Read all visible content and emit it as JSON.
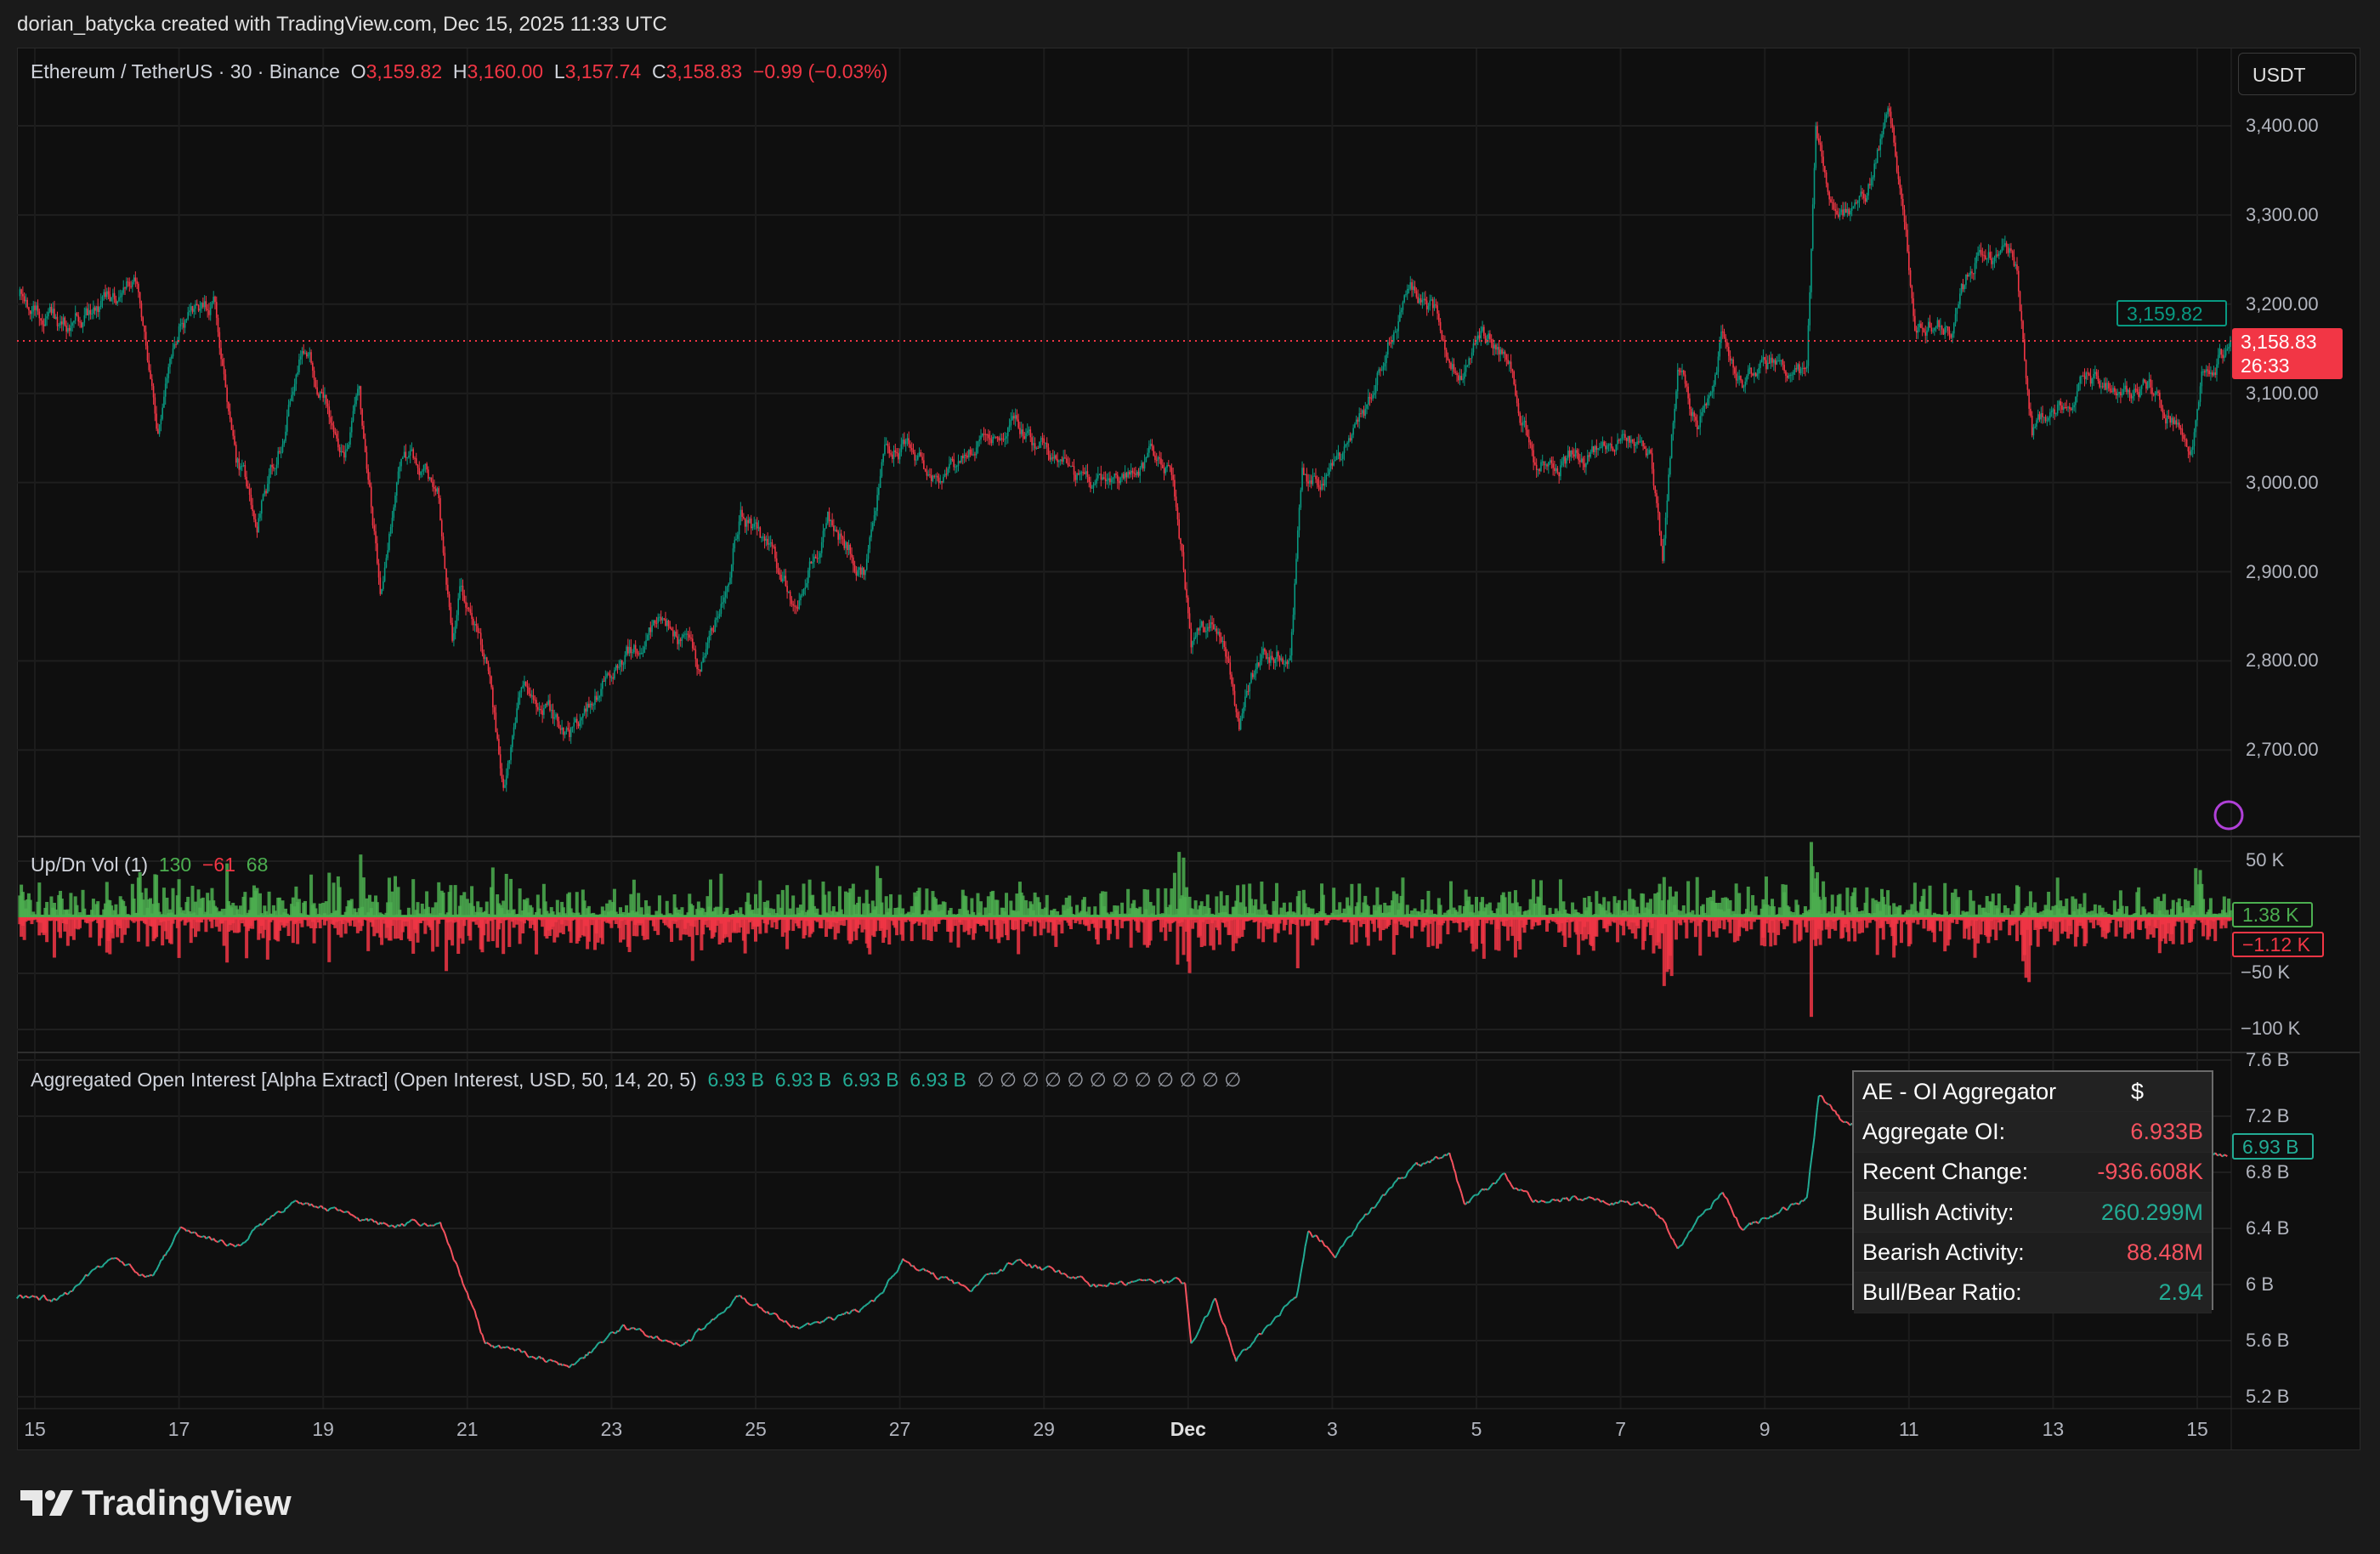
{
  "header": {
    "attribution": "dorian_batycka created with TradingView.com, Dec 15, 2025 11:33 UTC"
  },
  "price_pane": {
    "symbol": "Ethereum / TetherUS · 30 · Binance",
    "open_label": "O",
    "open": "3,159.82",
    "high_label": "H",
    "high": "3,160.00",
    "low_label": "L",
    "low": "3,157.74",
    "close_label": "C",
    "close": "3,158.83",
    "change": "−0.99 (−0.03%)",
    "currency_button": "USDT",
    "axis_labels": [
      "3,400.00",
      "3,300.00",
      "3,200.00",
      "3,100.00",
      "3,000.00",
      "2,900.00",
      "2,800.00",
      "2,700.00"
    ],
    "open_tag": "3,159.82",
    "last_price_tag": "3,158.83",
    "countdown": "26:33"
  },
  "volume_pane": {
    "title": "Up/Dn Vol (1)",
    "values": [
      "130",
      "−61",
      "68"
    ],
    "axis_labels": [
      "50 K",
      "−50 K",
      "−100 K"
    ],
    "up_tag": "1.38 K",
    "down_tag": "−1.12 K"
  },
  "oi_pane": {
    "title": "Aggregated Open Interest [Alpha Extract] (Open Interest, USD, 50, 14, 20, 5)",
    "values": [
      "6.93 B",
      "6.93 B",
      "6.93 B",
      "6.93 B"
    ],
    "empty_values": [
      "∅",
      "∅",
      "∅",
      "∅",
      "∅",
      "∅",
      "∅",
      "∅",
      "∅",
      "∅",
      "∅",
      "∅"
    ],
    "axis_labels": [
      "7.6 B",
      "7.2 B",
      "6.8 B",
      "6.4 B",
      "6 B",
      "5.6 B",
      "5.2 B"
    ],
    "last_tag": "6.93 B",
    "panel": {
      "title": "AE - OI Aggregator",
      "unit": "$",
      "rows": [
        {
          "label": "Aggregate OI:",
          "value": "6.933B",
          "color": "#f7525f"
        },
        {
          "label": "Recent Change:",
          "value": "-936.608K",
          "color": "#f7525f"
        },
        {
          "label": "Bullish Activity:",
          "value": "260.299M",
          "color": "#22ab94"
        },
        {
          "label": "Bearish Activity:",
          "value": "88.48M",
          "color": "#f7525f"
        },
        {
          "label": "Bull/Bear Ratio:",
          "value": "2.94",
          "color": "#22ab94"
        }
      ]
    }
  },
  "time_axis": [
    "15",
    "17",
    "19",
    "21",
    "23",
    "25",
    "27",
    "29",
    "Dec",
    "3",
    "5",
    "7",
    "9",
    "11",
    "13",
    "15"
  ],
  "footer": {
    "logo": "TradingView"
  },
  "colors": {
    "up": "#089981",
    "down": "#f23645",
    "vol_up": "#4caf50",
    "vol_down": "#f23645",
    "oi_up": "#22ab94",
    "oi_down": "#f7525f",
    "background": "#0f0f0f"
  },
  "chart_data": [
    {
      "type": "line",
      "xlabel": "",
      "ylabel": "",
      "ylim": [
        2620,
        3460
      ],
      "grid": true,
      "points": [
        [
          "2025-11-14T19:00",
          3209
        ],
        [
          "2025-11-15T09:00",
          3175
        ],
        [
          "2025-11-16T00:00",
          3200
        ],
        [
          "2025-11-16T10:00",
          3235
        ],
        [
          "2025-11-16T17:00",
          3047
        ],
        [
          "2025-11-17T00:00",
          3175
        ],
        [
          "2025-11-17T12:00",
          3200
        ],
        [
          "2025-11-17T19:00",
          3030
        ],
        [
          "2025-11-18T02:00",
          2962
        ],
        [
          "2025-11-18T10:00",
          3047
        ],
        [
          "2025-11-18T17:00",
          3158
        ],
        [
          "2025-11-19T00:00",
          3099
        ],
        [
          "2025-11-19T07:00",
          3030
        ],
        [
          "2025-11-19T12:00",
          3090
        ],
        [
          "2025-11-19T19:00",
          2886
        ],
        [
          "2025-11-20T02:00",
          3039
        ],
        [
          "2025-11-20T14:00",
          2997
        ],
        [
          "2025-11-20T19:00",
          2826
        ],
        [
          "2025-11-20T22:00",
          2886
        ],
        [
          "2025-11-21T07:00",
          2792
        ],
        [
          "2025-11-21T12:00",
          2656
        ],
        [
          "2025-11-21T19:00",
          2783
        ],
        [
          "2025-11-22T10:00",
          2716
        ],
        [
          "2025-11-23T05:00",
          2809
        ],
        [
          "2025-11-23T19:00",
          2843
        ],
        [
          "2025-11-24T05:00",
          2792
        ],
        [
          "2025-11-24T12:00",
          2860
        ],
        [
          "2025-11-24T19:00",
          2971
        ],
        [
          "2025-11-25T07:00",
          2903
        ],
        [
          "2025-11-25T14:00",
          2869
        ],
        [
          "2025-11-26T00:00",
          2962
        ],
        [
          "2025-11-26T12:00",
          2903
        ],
        [
          "2025-11-26T19:00",
          3030
        ],
        [
          "2025-11-27T02:00",
          3039
        ],
        [
          "2025-11-27T14:00",
          2997
        ],
        [
          "2025-11-28T00:00",
          3030
        ],
        [
          "2025-11-28T14:00",
          3073
        ],
        [
          "2025-11-29T02:00",
          3030
        ],
        [
          "2025-11-29T17:00",
          2997
        ],
        [
          "2025-11-30T12:00",
          3030
        ],
        [
          "2025-11-30T19:00",
          3013
        ],
        [
          "2025-12-01T01:00",
          2826
        ],
        [
          "2025-12-01T10:00",
          2843
        ],
        [
          "2025-12-01T17:00",
          2733
        ],
        [
          "2025-12-02T00:00",
          2801
        ],
        [
          "2025-12-02T10:00",
          2809
        ],
        [
          "2025-12-02T14:00",
          3013
        ],
        [
          "2025-12-02T22:00",
          2997
        ],
        [
          "2025-12-03T07:00",
          3047
        ],
        [
          "2025-12-03T14:00",
          3099
        ],
        [
          "2025-12-03T19:00",
          3167
        ],
        [
          "2025-12-04T02:00",
          3218
        ],
        [
          "2025-12-04T10:00",
          3192
        ],
        [
          "2025-12-04T19:00",
          3116
        ],
        [
          "2025-12-05T02:00",
          3175
        ],
        [
          "2025-12-05T12:00",
          3124
        ],
        [
          "2025-12-05T19:00",
          3022
        ],
        [
          "2025-12-06T10:00",
          3030
        ],
        [
          "2025-12-07T00:00",
          3047
        ],
        [
          "2025-12-07T10:00",
          3030
        ],
        [
          "2025-12-07T14:00",
          2911
        ],
        [
          "2025-12-07T19:00",
          3133
        ],
        [
          "2025-12-08T02:00",
          3056
        ],
        [
          "2025-12-08T10:00",
          3167
        ],
        [
          "2025-12-08T17:00",
          3116
        ],
        [
          "2025-12-09T02:00",
          3124
        ],
        [
          "2025-12-09T14:00",
          3116
        ],
        [
          "2025-12-09T17:00",
          3388
        ],
        [
          "2025-12-10T00:00",
          3303
        ],
        [
          "2025-12-10T10:00",
          3320
        ],
        [
          "2025-12-10T17:00",
          3422
        ],
        [
          "2025-12-10T22:00",
          3311
        ],
        [
          "2025-12-11T02:00",
          3184
        ],
        [
          "2025-12-11T14:00",
          3175
        ],
        [
          "2025-12-11T22:00",
          3252
        ],
        [
          "2025-12-12T12:00",
          3243
        ],
        [
          "2025-12-12T17:00",
          3065
        ],
        [
          "2025-12-13T02:00",
          3090
        ],
        [
          "2025-12-13T12:00",
          3116
        ],
        [
          "2025-12-14T00:00",
          3107
        ],
        [
          "2025-12-14T10:00",
          3107
        ],
        [
          "2025-12-14T14:00",
          3082
        ],
        [
          "2025-12-14T22:00",
          3047
        ],
        [
          "2025-12-15T02:00",
          3124
        ],
        [
          "2025-12-15T11:00",
          3159
        ]
      ]
    },
    {
      "type": "bar",
      "ylim": [
        -110000,
        55000
      ],
      "last_values": [
        130,
        -61,
        68
      ]
    },
    {
      "type": "line",
      "ylim": [
        5.1,
        7.7
      ],
      "points": [
        [
          "2025-11-14T18:00",
          5.9
        ],
        [
          "2025-11-15T09:00",
          5.9
        ],
        [
          "2025-11-16T00:00",
          6.17
        ],
        [
          "2025-11-16T15:00",
          6.06
        ],
        [
          "2025-11-17T01:00",
          6.39
        ],
        [
          "2025-11-17T19:00",
          6.28
        ],
        [
          "2025-11-18T15:00",
          6.61
        ],
        [
          "2025-11-19T14:00",
          6.44
        ],
        [
          "2025-11-20T15:00",
          6.44
        ],
        [
          "2025-11-20T20:00",
          6.17
        ],
        [
          "2025-11-21T06:00",
          5.58
        ],
        [
          "2025-11-22T10:00",
          5.42
        ],
        [
          "2025-11-23T04:00",
          5.69
        ],
        [
          "2025-11-24T00:00",
          5.58
        ],
        [
          "2025-11-24T18:00",
          5.9
        ],
        [
          "2025-11-25T16:00",
          5.69
        ],
        [
          "2025-11-26T15:00",
          5.85
        ],
        [
          "2025-11-27T01:00",
          6.17
        ],
        [
          "2025-11-28T00:00",
          5.96
        ],
        [
          "2025-11-28T15:00",
          6.17
        ],
        [
          "2025-11-29T16:00",
          6.01
        ],
        [
          "2025-11-30T23:00",
          6.01
        ],
        [
          "2025-12-01T01:00",
          5.58
        ],
        [
          "2025-12-01T09:00",
          5.9
        ],
        [
          "2025-12-01T16:00",
          5.47
        ],
        [
          "2025-12-02T12:00",
          5.9
        ],
        [
          "2025-12-02T16:00",
          6.39
        ],
        [
          "2025-12-03T01:00",
          6.23
        ],
        [
          "2025-12-03T11:00",
          6.5
        ],
        [
          "2025-12-04T02:00",
          6.82
        ],
        [
          "2025-12-04T15:00",
          6.93
        ],
        [
          "2025-12-04T20:00",
          6.55
        ],
        [
          "2025-12-05T09:00",
          6.77
        ],
        [
          "2025-12-05T19:00",
          6.61
        ],
        [
          "2025-12-06T15:00",
          6.61
        ],
        [
          "2025-12-07T11:00",
          6.55
        ],
        [
          "2025-12-07T19:00",
          6.28
        ],
        [
          "2025-12-08T10:00",
          6.66
        ],
        [
          "2025-12-08T17:00",
          6.39
        ],
        [
          "2025-12-09T14:00",
          6.61
        ],
        [
          "2025-12-09T18:00",
          7.36
        ],
        [
          "2025-12-10T02:00",
          7.15
        ],
        [
          "2025-12-15T10:00",
          6.93
        ]
      ]
    }
  ]
}
